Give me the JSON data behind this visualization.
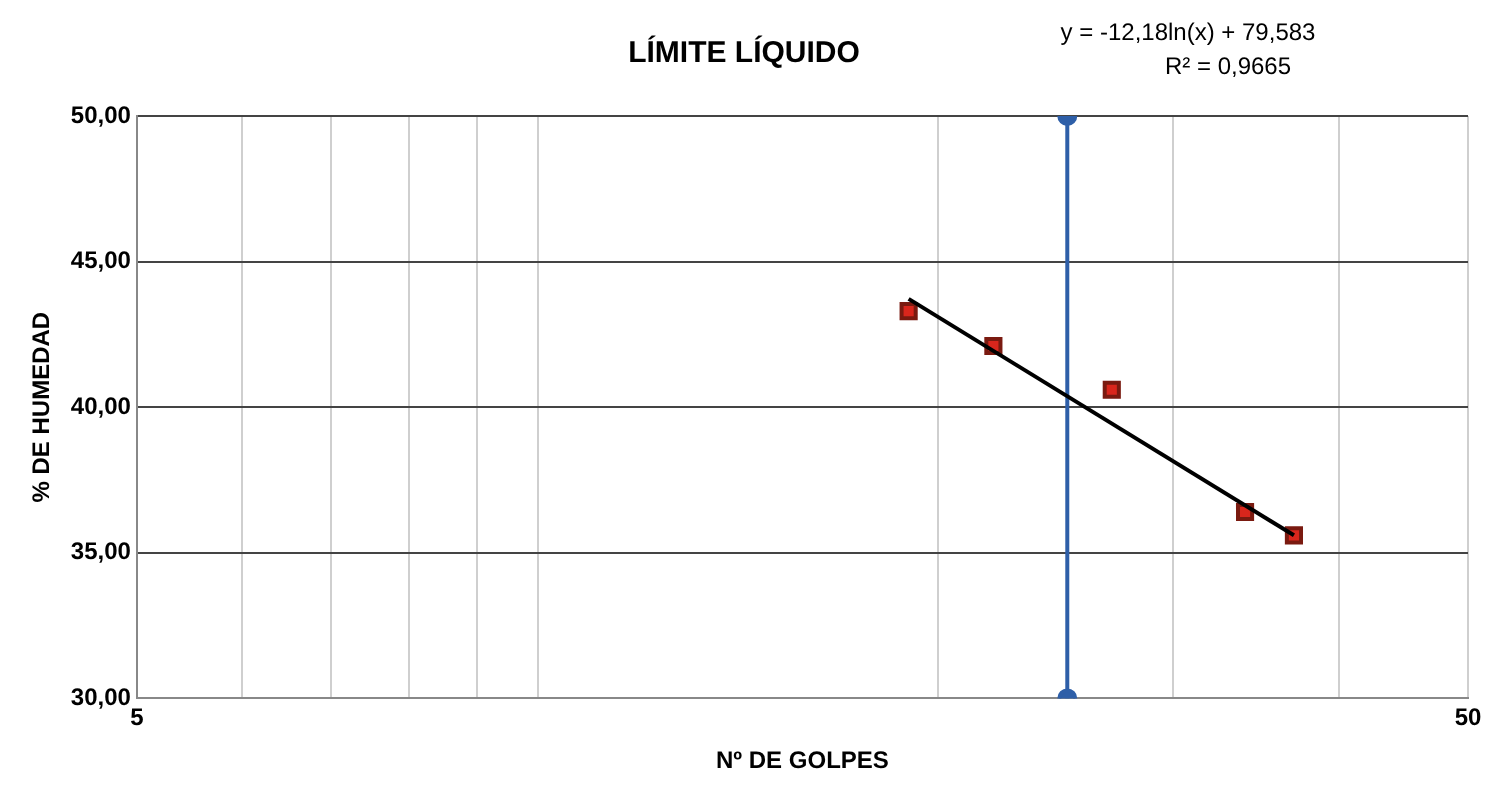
{
  "chart_data": {
    "type": "scatter",
    "title": "LÍMITE LÍQUIDO",
    "xlabel": "Nº DE GOLPES",
    "ylabel": "% DE HUMEDAD",
    "annotations": [
      "y = -12,18ln(x) + 79,583",
      "R² = 0,9665"
    ],
    "log": "x",
    "grid": true,
    "legend": false,
    "xlim": [
      5,
      50
    ],
    "xticks": [
      5,
      {
        "value": 6,
        "label": null
      },
      {
        "value": 7,
        "label": null
      },
      {
        "value": 8,
        "label": null
      },
      {
        "value": 9,
        "label": null
      },
      {
        "value": 10,
        "label": null
      },
      {
        "value": 20,
        "label": null
      },
      {
        "value": 30,
        "label": null
      },
      {
        "value": 40,
        "label": null
      },
      50
    ],
    "ylim": [
      30,
      50
    ],
    "yticks": [
      {
        "value": 30,
        "label": "30,00"
      },
      {
        "value": 35,
        "label": "35,00"
      },
      {
        "value": 40,
        "label": "40,00"
      },
      {
        "value": 45,
        "label": "45,00"
      },
      {
        "value": 50,
        "label": "50,00"
      }
    ],
    "series": [
      {
        "type": "line",
        "color": "#000000",
        "marker": "none",
        "line_style": "solid",
        "x": [
          19,
          37
        ],
        "values": [
          43.72,
          35.6
        ]
      },
      {
        "type": "line",
        "color": "#2e5fa8",
        "marker": "circle",
        "line_style": "solid",
        "x": [
          25,
          25
        ],
        "values": [
          30,
          50
        ]
      },
      {
        "type": "scatter",
        "color": "#d9261c",
        "marker": "square",
        "x": [
          19,
          22,
          27,
          34,
          37
        ],
        "values": [
          43.3,
          42.1,
          40.6,
          36.4,
          35.6
        ]
      }
    ]
  }
}
